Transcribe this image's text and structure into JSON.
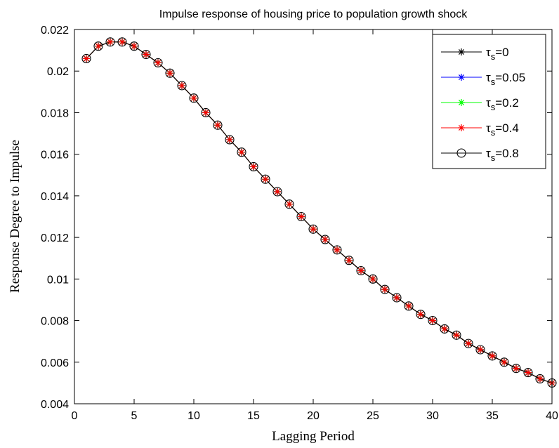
{
  "chart_data": {
    "type": "line",
    "title": "Impulse response of housing price to population growth shock",
    "xlabel": "Lagging Period",
    "ylabel": "Response Degree to Impulse",
    "xlim": [
      0,
      40
    ],
    "ylim": [
      0.004,
      0.022
    ],
    "xticks": [
      0,
      5,
      10,
      15,
      20,
      25,
      30,
      35,
      40
    ],
    "xtick_labels": [
      "0",
      "5",
      "10",
      "15",
      "20",
      "25",
      "30",
      "35",
      "40"
    ],
    "yticks": [
      0.004,
      0.006,
      0.008,
      0.01,
      0.012,
      0.014,
      0.016,
      0.018,
      0.02,
      0.022
    ],
    "ytick_labels": [
      "0.004",
      "0.006",
      "0.008",
      "0.01",
      "0.012",
      "0.014",
      "0.016",
      "0.018",
      "0.02",
      "0.022"
    ],
    "grid": false,
    "legend_position": "top-right",
    "x": [
      1,
      2,
      3,
      4,
      5,
      6,
      7,
      8,
      9,
      10,
      11,
      12,
      13,
      14,
      15,
      16,
      17,
      18,
      19,
      20,
      21,
      22,
      23,
      24,
      25,
      26,
      27,
      28,
      29,
      30,
      31,
      32,
      33,
      34,
      35,
      36,
      37,
      38,
      39,
      40
    ],
    "series": [
      {
        "name": "τs=0",
        "tau": "τ",
        "sub": "s",
        "value": "=0",
        "color": "#000000",
        "marker": "asterisk",
        "values": [
          0.0206,
          0.0212,
          0.0214,
          0.0214,
          0.0212,
          0.0208,
          0.0204,
          0.0199,
          0.0193,
          0.0187,
          0.018,
          0.0174,
          0.0167,
          0.0161,
          0.0154,
          0.0148,
          0.0142,
          0.0136,
          0.013,
          0.0124,
          0.0119,
          0.0114,
          0.0109,
          0.0104,
          0.01,
          0.0095,
          0.0091,
          0.0087,
          0.0083,
          0.008,
          0.0076,
          0.0073,
          0.0069,
          0.0066,
          0.0063,
          0.006,
          0.0057,
          0.0055,
          0.0052,
          0.005
        ]
      },
      {
        "name": "τs=0.05",
        "tau": "τ",
        "sub": "s",
        "value": "=0.05",
        "color": "#0000ff",
        "marker": "asterisk",
        "values": [
          0.0206,
          0.0212,
          0.0214,
          0.0214,
          0.0212,
          0.0208,
          0.0204,
          0.0199,
          0.0193,
          0.0187,
          0.018,
          0.0174,
          0.0167,
          0.0161,
          0.0154,
          0.0148,
          0.0142,
          0.0136,
          0.013,
          0.0124,
          0.0119,
          0.0114,
          0.0109,
          0.0104,
          0.01,
          0.0095,
          0.0091,
          0.0087,
          0.0083,
          0.008,
          0.0076,
          0.0073,
          0.0069,
          0.0066,
          0.0063,
          0.006,
          0.0057,
          0.0055,
          0.0052,
          0.005
        ]
      },
      {
        "name": "τs=0.2",
        "tau": "τ",
        "sub": "s",
        "value": "=0.2",
        "color": "#00ff00",
        "marker": "asterisk",
        "values": [
          0.0206,
          0.0212,
          0.0214,
          0.0214,
          0.0212,
          0.0208,
          0.0204,
          0.0199,
          0.0193,
          0.0187,
          0.018,
          0.0174,
          0.0167,
          0.0161,
          0.0154,
          0.0148,
          0.0142,
          0.0136,
          0.013,
          0.0124,
          0.0119,
          0.0114,
          0.0109,
          0.0104,
          0.01,
          0.0095,
          0.0091,
          0.0087,
          0.0083,
          0.008,
          0.0076,
          0.0073,
          0.0069,
          0.0066,
          0.0063,
          0.006,
          0.0057,
          0.0055,
          0.0052,
          0.005
        ]
      },
      {
        "name": "τs=0.4",
        "tau": "τ",
        "sub": "s",
        "value": "=0.4",
        "color": "#ff0000",
        "marker": "asterisk",
        "values": [
          0.0206,
          0.0212,
          0.0214,
          0.0214,
          0.0212,
          0.0208,
          0.0204,
          0.0199,
          0.0193,
          0.0187,
          0.018,
          0.0174,
          0.0167,
          0.0161,
          0.0154,
          0.0148,
          0.0142,
          0.0136,
          0.013,
          0.0124,
          0.0119,
          0.0114,
          0.0109,
          0.0104,
          0.01,
          0.0095,
          0.0091,
          0.0087,
          0.0083,
          0.008,
          0.0076,
          0.0073,
          0.0069,
          0.0066,
          0.0063,
          0.006,
          0.0057,
          0.0055,
          0.0052,
          0.005
        ]
      },
      {
        "name": "τs=0.8",
        "tau": "τ",
        "sub": "s",
        "value": "=0.8",
        "color": "#000000",
        "marker": "circle",
        "values": [
          0.0206,
          0.0212,
          0.0214,
          0.0214,
          0.0212,
          0.0208,
          0.0204,
          0.0199,
          0.0193,
          0.0187,
          0.018,
          0.0174,
          0.0167,
          0.0161,
          0.0154,
          0.0148,
          0.0142,
          0.0136,
          0.013,
          0.0124,
          0.0119,
          0.0114,
          0.0109,
          0.0104,
          0.01,
          0.0095,
          0.0091,
          0.0087,
          0.0083,
          0.008,
          0.0076,
          0.0073,
          0.0069,
          0.0066,
          0.0063,
          0.006,
          0.0057,
          0.0055,
          0.0052,
          0.005
        ]
      }
    ]
  }
}
